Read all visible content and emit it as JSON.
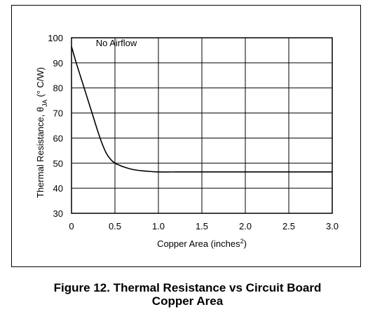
{
  "chart_data": {
    "type": "line",
    "ylabel_parts": {
      "pre": "Thermal Resistance, ",
      "theta": "θ",
      "sub": "JA",
      "post": " (° C/W)"
    },
    "xlabel_parts": {
      "pre": "Copper Area (inches",
      "sup": "2",
      "post": ")"
    },
    "xlim": [
      0,
      3.0
    ],
    "ylim": [
      30,
      100
    ],
    "x_ticks": [
      0,
      0.5,
      1.0,
      1.5,
      2.0,
      2.5,
      3.0
    ],
    "x_tick_labels": [
      "0",
      "0.5",
      "1.0",
      "1.5",
      "2.0",
      "2.5",
      "3.0"
    ],
    "y_ticks": [
      30,
      40,
      50,
      60,
      70,
      80,
      90,
      100
    ],
    "y_tick_labels": [
      "30",
      "40",
      "50",
      "60",
      "70",
      "80",
      "90",
      "100"
    ],
    "grid": true,
    "annotation": "No Airflow",
    "series": [
      {
        "x": [
          0,
          0.05,
          0.1,
          0.15,
          0.2,
          0.25,
          0.3,
          0.35,
          0.4,
          0.45,
          0.5,
          0.55,
          0.6,
          0.7,
          0.8,
          0.9,
          1.0,
          1.25,
          1.5,
          2.0,
          2.5,
          3.0
        ],
        "y": [
          96.5,
          90.5,
          85,
          79.5,
          74,
          68.5,
          63,
          58,
          54,
          51.5,
          50,
          49.2,
          48.5,
          47.5,
          47,
          46.7,
          46.5,
          46.5,
          46.5,
          46.5,
          46.5,
          46.5
        ]
      }
    ]
  },
  "caption": {
    "line1": "Figure 12. Thermal Resistance vs Circuit Board",
    "line2": "Copper Area"
  },
  "colors": {
    "line": "#000000",
    "grid": "#000000",
    "background": "#ffffff"
  }
}
